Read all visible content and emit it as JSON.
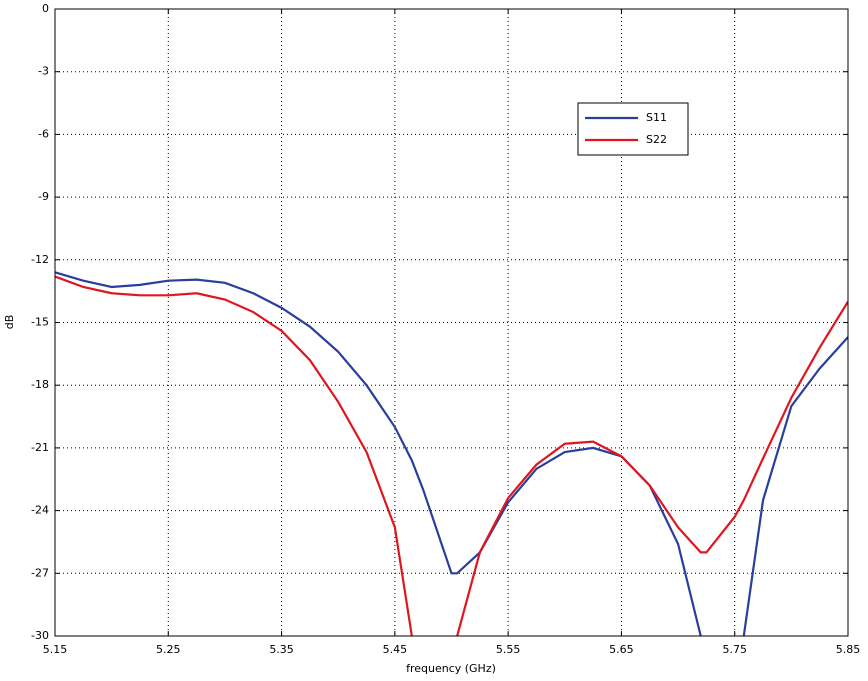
{
  "chart_data": {
    "type": "line",
    "x_label": "frequency (GHz)",
    "y_label": "dB",
    "x": [
      5.15,
      5.175,
      5.2,
      5.225,
      5.25,
      5.275,
      5.3,
      5.325,
      5.35,
      5.375,
      5.4,
      5.425,
      5.45,
      5.465,
      5.475,
      5.5,
      5.505,
      5.525,
      5.55,
      5.575,
      5.6,
      5.625,
      5.65,
      5.675,
      5.7,
      5.72,
      5.725,
      5.75,
      5.758,
      5.775,
      5.8,
      5.825,
      5.85
    ],
    "series": [
      {
        "name": "S11",
        "color": "#2a3f9c",
        "values": [
          -12.6,
          -13.0,
          -13.3,
          -13.2,
          -13.0,
          -12.95,
          -13.1,
          -13.6,
          -14.3,
          -15.2,
          -16.4,
          -18.0,
          -20.0,
          -21.6,
          -23.0,
          -27.0,
          -27.0,
          -26.0,
          -23.6,
          -22.0,
          -21.2,
          -21.0,
          -21.4,
          -22.8,
          -25.6,
          -30,
          null,
          null,
          -30,
          -23.5,
          -19.0,
          -17.2,
          -15.7
        ]
      },
      {
        "name": "S22",
        "color": "#e0161e",
        "values": [
          -12.8,
          -13.3,
          -13.6,
          -13.7,
          -13.7,
          -13.6,
          -13.9,
          -14.5,
          -15.4,
          -16.8,
          -18.8,
          -21.2,
          -24.8,
          -30,
          null,
          null,
          -30,
          -26.0,
          -23.4,
          -21.8,
          -20.8,
          -20.7,
          -21.4,
          -22.8,
          -24.8,
          -26.0,
          -26.0,
          -24.3,
          -23.5,
          -21.5,
          -18.6,
          -16.2,
          -14.0
        ]
      }
    ],
    "xlim": [
      5.15,
      5.85
    ],
    "xticks": [
      5.15,
      5.25,
      5.35,
      5.45,
      5.55,
      5.65,
      5.75,
      5.85
    ],
    "ylim": [
      -30,
      0
    ],
    "yticks": [
      0,
      -3,
      -6,
      -9,
      -12,
      -15,
      -18,
      -21,
      -24,
      -27,
      -30
    ],
    "grid": true
  }
}
